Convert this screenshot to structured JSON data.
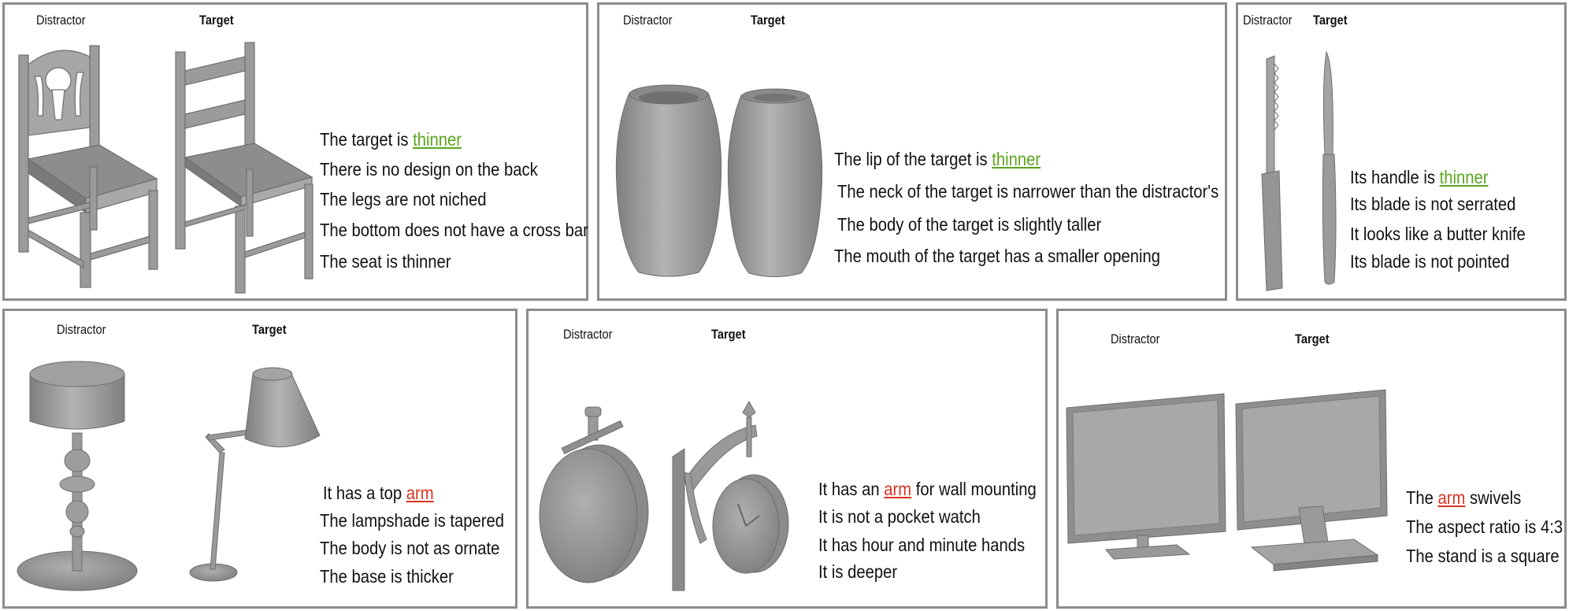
{
  "colors": {
    "green": "#5aa51c",
    "red": "#d8331f",
    "border": "#8c8c8c",
    "object": "#9a9a9a"
  },
  "panels": [
    {
      "distractor_label": "Distractor",
      "target_label": "Target",
      "captions": [
        {
          "prefix": "The target is ",
          "highlight": "thinner",
          "suffix": ""
        },
        {
          "prefix": "There is no design on the back",
          "highlight": "",
          "suffix": ""
        },
        {
          "prefix": "The legs are not niched",
          "highlight": "",
          "suffix": ""
        },
        {
          "prefix": "The bottom does not have a cross bar",
          "highlight": "",
          "suffix": ""
        },
        {
          "prefix": "The seat is thinner",
          "highlight": "",
          "suffix": ""
        }
      ]
    },
    {
      "distractor_label": "Distractor",
      "target_label": "Target",
      "captions": [
        {
          "prefix": "The lip of the target is ",
          "highlight": "thinner",
          "suffix": ""
        },
        {
          "prefix": "The neck of the target is narrower than the distractor's",
          "highlight": "",
          "suffix": ""
        },
        {
          "prefix": "The body of the target is slightly taller",
          "highlight": "",
          "suffix": ""
        },
        {
          "prefix": "The mouth of the target has a smaller opening",
          "highlight": "",
          "suffix": ""
        }
      ]
    },
    {
      "distractor_label": "Distractor",
      "target_label": "Target",
      "captions": [
        {
          "prefix": "Its handle is ",
          "highlight": "thinner",
          "suffix": ""
        },
        {
          "prefix": "Its blade is not serrated",
          "highlight": "",
          "suffix": ""
        },
        {
          "prefix": "It looks like a butter knife",
          "highlight": "",
          "suffix": ""
        },
        {
          "prefix": "Its blade is not pointed",
          "highlight": "",
          "suffix": ""
        }
      ]
    },
    {
      "distractor_label": "Distractor",
      "target_label": "Target",
      "captions": [
        {
          "prefix": "It has a top ",
          "highlight": "arm",
          "suffix": ""
        },
        {
          "prefix": "The lampshade is tapered",
          "highlight": "",
          "suffix": ""
        },
        {
          "prefix": "The body is not as ornate",
          "highlight": "",
          "suffix": ""
        },
        {
          "prefix": "The base is thicker",
          "highlight": "",
          "suffix": ""
        }
      ]
    },
    {
      "distractor_label": "Distractor",
      "target_label": "Target",
      "captions": [
        {
          "prefix": "It has an ",
          "highlight": "arm",
          "suffix": " for wall mounting"
        },
        {
          "prefix": "It is not a pocket watch",
          "highlight": "",
          "suffix": ""
        },
        {
          "prefix": "It has hour and minute hands",
          "highlight": "",
          "suffix": ""
        },
        {
          "prefix": "It is deeper",
          "highlight": "",
          "suffix": ""
        }
      ]
    },
    {
      "distractor_label": "Distractor",
      "target_label": "Target",
      "captions": [
        {
          "prefix": "The ",
          "highlight": "arm",
          "suffix": " swivels"
        },
        {
          "prefix": "The aspect ratio is 4:3",
          "highlight": "",
          "suffix": ""
        },
        {
          "prefix": "The stand is a square",
          "highlight": "",
          "suffix": ""
        }
      ]
    }
  ]
}
